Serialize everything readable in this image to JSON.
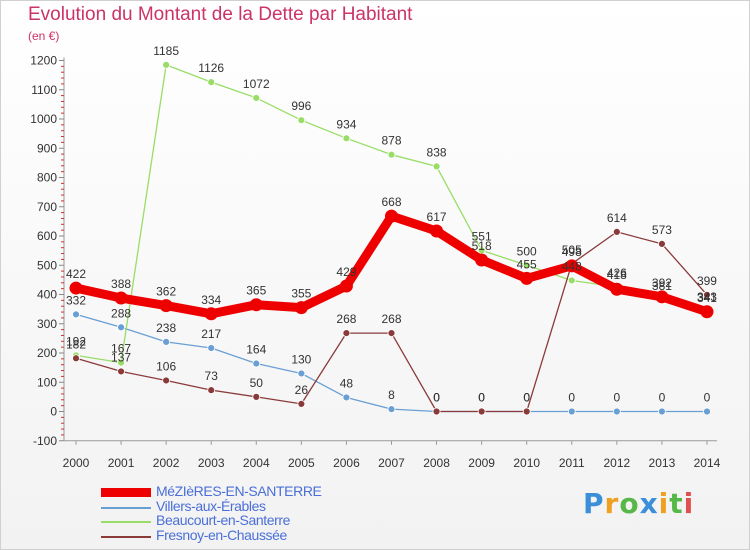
{
  "header": {
    "title": "Evolution du Montant de la Dette par Habitant",
    "unit": "(en €)"
  },
  "brand": {
    "text": "Proxiti",
    "letters": [
      {
        "ch": "P",
        "color": "#3a8fd8"
      },
      {
        "ch": "r",
        "color": "#f0a020"
      },
      {
        "ch": "o",
        "color": "#55b848"
      },
      {
        "ch": "x",
        "color": "#3a8fd8"
      },
      {
        "ch": "i",
        "color": "#f0a020"
      },
      {
        "ch": "t",
        "color": "#55b848"
      },
      {
        "ch": "i",
        "color": "#e05050"
      }
    ]
  },
  "chart_data": {
    "type": "line",
    "x": [
      "2000",
      "2001",
      "2002",
      "2003",
      "2004",
      "2005",
      "2006",
      "2007",
      "2008",
      "2009",
      "2010",
      "2011",
      "2012",
      "2013",
      "2014"
    ],
    "ylim": [
      -100,
      1200
    ],
    "yticks": [
      -100,
      0,
      100,
      200,
      300,
      400,
      500,
      600,
      700,
      800,
      900,
      1000,
      1100,
      1200
    ],
    "grid": false,
    "legend_position": "bottom-left",
    "series": [
      {
        "name": "MéZIèRES-EN-SANTERRE",
        "color": "#ee0000",
        "emphasis": true,
        "values": [
          422,
          388,
          362,
          334,
          365,
          355,
          429,
          668,
          617,
          518,
          455,
          498,
          418,
          392,
          341
        ]
      },
      {
        "name": "Villers-aux-Érables",
        "color": "#6a9fd4",
        "values": [
          332,
          288,
          238,
          217,
          164,
          130,
          48,
          8,
          0,
          0,
          0,
          0,
          0,
          0,
          0
        ]
      },
      {
        "name": "Beaucourt-en-Santerre",
        "color": "#99dd66",
        "values": [
          192,
          167,
          1185,
          1126,
          1072,
          996,
          934,
          878,
          838,
          551,
          500,
          448,
          426,
          381,
          343
        ]
      },
      {
        "name": "Fresnoy-en-Chaussée",
        "color": "#8b3a3a",
        "values": [
          182,
          137,
          106,
          73,
          50,
          26,
          268,
          268,
          0,
          0,
          0,
          505,
          614,
          573,
          399
        ]
      }
    ]
  }
}
